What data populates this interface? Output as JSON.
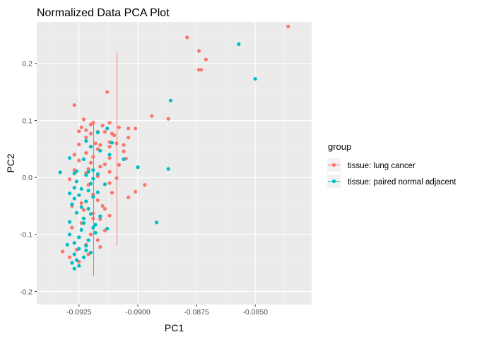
{
  "chart_data": {
    "type": "scatter",
    "title": "Normalized Data PCA Plot",
    "xlabel": "PC1",
    "ylabel": "PC2",
    "xlim": [
      -0.0943,
      -0.0826
    ],
    "ylim": [
      -0.223,
      0.273
    ],
    "x_ticks": [
      -0.0925,
      -0.09,
      -0.0875,
      -0.085
    ],
    "x_tick_labels": [
      "-0.0925",
      "-0.0900",
      "-0.0875",
      "-0.0850"
    ],
    "y_ticks": [
      -0.2,
      -0.1,
      0.0,
      0.1,
      0.2
    ],
    "y_tick_labels": [
      "-0.2",
      "-0.1",
      "0.0",
      "0.1",
      "0.2"
    ],
    "grid": true,
    "legend": {
      "title": "group",
      "position": "right"
    },
    "series": [
      {
        "name": "tissue: lung cancer",
        "color": "#F8766D",
        "points": [
          [
            -0.0836,
            0.265
          ],
          [
            -0.0879,
            0.246
          ],
          [
            -0.0874,
            0.222
          ],
          [
            -0.0871,
            0.207
          ],
          [
            -0.0874,
            0.189
          ],
          [
            -0.0873,
            0.189
          ],
          [
            -0.0913,
            0.15
          ],
          [
            -0.0927,
            0.127
          ],
          [
            -0.0894,
            0.108
          ],
          [
            -0.0887,
            0.103
          ],
          [
            -0.0923,
            0.102
          ],
          [
            -0.0919,
            0.096
          ],
          [
            -0.0912,
            0.096
          ],
          [
            -0.092,
            0.093
          ],
          [
            -0.0915,
            0.091
          ],
          [
            -0.0908,
            0.088
          ],
          [
            -0.0924,
            0.088
          ],
          [
            -0.0904,
            0.086
          ],
          [
            -0.0901,
            0.086
          ],
          [
            -0.0922,
            0.083
          ],
          [
            -0.0925,
            0.081
          ],
          [
            -0.0917,
            0.08
          ],
          [
            -0.0914,
            0.08
          ],
          [
            -0.0911,
            0.077
          ],
          [
            -0.092,
            0.077
          ],
          [
            -0.091,
            0.074
          ],
          [
            -0.0904,
            0.07
          ],
          [
            -0.0922,
            0.07
          ],
          [
            -0.0912,
            0.062
          ],
          [
            -0.0918,
            0.06
          ],
          [
            -0.0909,
            0.06
          ],
          [
            -0.0925,
            0.058
          ],
          [
            -0.0916,
            0.057
          ],
          [
            -0.0906,
            0.057
          ],
          [
            -0.0912,
            0.054
          ],
          [
            -0.0917,
            0.05
          ],
          [
            -0.0906,
            0.046
          ],
          [
            -0.0922,
            0.043
          ],
          [
            -0.0927,
            0.04
          ],
          [
            -0.0919,
            0.036
          ],
          [
            -0.0912,
            0.034
          ],
          [
            -0.0905,
            0.033
          ],
          [
            -0.0925,
            0.03
          ],
          [
            -0.092,
            0.026
          ],
          [
            -0.0914,
            0.023
          ],
          [
            -0.0908,
            0.022
          ],
          [
            -0.0916,
            0.019
          ],
          [
            -0.0921,
            0.015
          ],
          [
            -0.0927,
            0.013
          ],
          [
            -0.0912,
            0.01
          ],
          [
            -0.0922,
            0.008
          ],
          [
            -0.0917,
            0.002
          ],
          [
            -0.0909,
            -0.001
          ],
          [
            -0.0929,
            -0.003
          ],
          [
            -0.0912,
            -0.01
          ],
          [
            -0.0921,
            -0.013
          ],
          [
            -0.0897,
            -0.013
          ],
          [
            -0.0901,
            -0.025
          ],
          [
            -0.0911,
            -0.027
          ],
          [
            -0.0919,
            -0.03
          ],
          [
            -0.0904,
            -0.035
          ],
          [
            -0.0917,
            -0.04
          ],
          [
            -0.0924,
            -0.045
          ],
          [
            -0.0915,
            -0.05
          ],
          [
            -0.0923,
            -0.057
          ],
          [
            -0.0919,
            -0.063
          ],
          [
            -0.0912,
            -0.067
          ],
          [
            -0.0916,
            -0.073
          ],
          [
            -0.0924,
            -0.08
          ],
          [
            -0.0928,
            -0.088
          ],
          [
            -0.0914,
            -0.093
          ],
          [
            -0.092,
            -0.1
          ],
          [
            -0.0925,
            -0.105
          ],
          [
            -0.0917,
            -0.11
          ],
          [
            -0.0922,
            -0.118
          ],
          [
            -0.0916,
            -0.122
          ],
          [
            -0.0926,
            -0.127
          ],
          [
            -0.0921,
            -0.135
          ],
          [
            -0.0929,
            -0.14
          ],
          [
            -0.0925,
            -0.148
          ],
          [
            -0.0932,
            -0.13
          ],
          [
            -0.0914,
            -0.055
          ],
          [
            -0.0919,
            -0.072
          ],
          [
            -0.0928,
            -0.05
          ]
        ]
      },
      {
        "name": "tissue: paired normal adjacent",
        "color": "#00BFC4",
        "points": [
          [
            -0.0857,
            0.234
          ],
          [
            -0.085,
            0.173
          ],
          [
            -0.0886,
            0.135
          ],
          [
            -0.0913,
            0.086
          ],
          [
            -0.0917,
            0.079
          ],
          [
            -0.0922,
            0.064
          ],
          [
            -0.0911,
            0.061
          ],
          [
            -0.092,
            0.054
          ],
          [
            -0.0916,
            0.047
          ],
          [
            -0.0912,
            0.04
          ],
          [
            -0.0929,
            0.034
          ],
          [
            -0.0923,
            0.032
          ],
          [
            -0.0906,
            0.032
          ],
          [
            -0.09,
            0.018
          ],
          [
            -0.0887,
            0.015
          ],
          [
            -0.0919,
            0.013
          ],
          [
            -0.0926,
            0.011
          ],
          [
            -0.0921,
            0.01
          ],
          [
            -0.0933,
            0.009
          ],
          [
            -0.0927,
            0.007
          ],
          [
            -0.0917,
            0.006
          ],
          [
            -0.0922,
            0.004
          ],
          [
            -0.0919,
            -0.002
          ],
          [
            -0.0926,
            -0.007
          ],
          [
            -0.092,
            -0.011
          ],
          [
            -0.0914,
            -0.012
          ],
          [
            -0.0927,
            -0.018
          ],
          [
            -0.0924,
            -0.02
          ],
          [
            -0.0921,
            -0.023
          ],
          [
            -0.0917,
            -0.026
          ],
          [
            -0.0929,
            -0.028
          ],
          [
            -0.0925,
            -0.031
          ],
          [
            -0.0919,
            -0.034
          ],
          [
            -0.0927,
            -0.037
          ],
          [
            -0.0922,
            -0.042
          ],
          [
            -0.0928,
            -0.047
          ],
          [
            -0.0924,
            -0.052
          ],
          [
            -0.0921,
            -0.055
          ],
          [
            -0.0926,
            -0.062
          ],
          [
            -0.092,
            -0.064
          ],
          [
            -0.0916,
            -0.068
          ],
          [
            -0.0923,
            -0.072
          ],
          [
            -0.0929,
            -0.078
          ],
          [
            -0.0919,
            -0.088
          ],
          [
            -0.0924,
            -0.092
          ],
          [
            -0.0918,
            -0.097
          ],
          [
            -0.0925,
            -0.105
          ],
          [
            -0.0921,
            -0.11
          ],
          [
            -0.0927,
            -0.115
          ],
          [
            -0.093,
            -0.118
          ],
          [
            -0.0925,
            -0.125
          ],
          [
            -0.0922,
            -0.128
          ],
          [
            -0.092,
            -0.132
          ],
          [
            -0.0927,
            -0.135
          ],
          [
            -0.0923,
            -0.14
          ],
          [
            -0.0926,
            -0.145
          ],
          [
            -0.0928,
            -0.15
          ],
          [
            -0.0925,
            -0.155
          ],
          [
            -0.0927,
            -0.16
          ],
          [
            -0.0923,
            -0.08
          ],
          [
            -0.0913,
            -0.09
          ],
          [
            -0.0929,
            -0.1
          ],
          [
            -0.0922,
            -0.12
          ],
          [
            -0.0892,
            -0.079
          ],
          [
            -0.0918,
            -0.083
          ]
        ]
      }
    ],
    "ellipses": [
      {
        "group": "tissue: lung cancer",
        "color": "#F8766D",
        "cx": -0.09089,
        "cy": 0.05034,
        "a": 0.1888,
        "b": 0.0711,
        "theta_deg": 62.0
      },
      {
        "group": "tissue: paired normal adjacent",
        "color": "#00BFC4",
        "cx": -0.09188,
        "cy": -0.03627,
        "a": 0.1451,
        "b": 0.0399,
        "theta_deg": 69.0
      }
    ]
  }
}
